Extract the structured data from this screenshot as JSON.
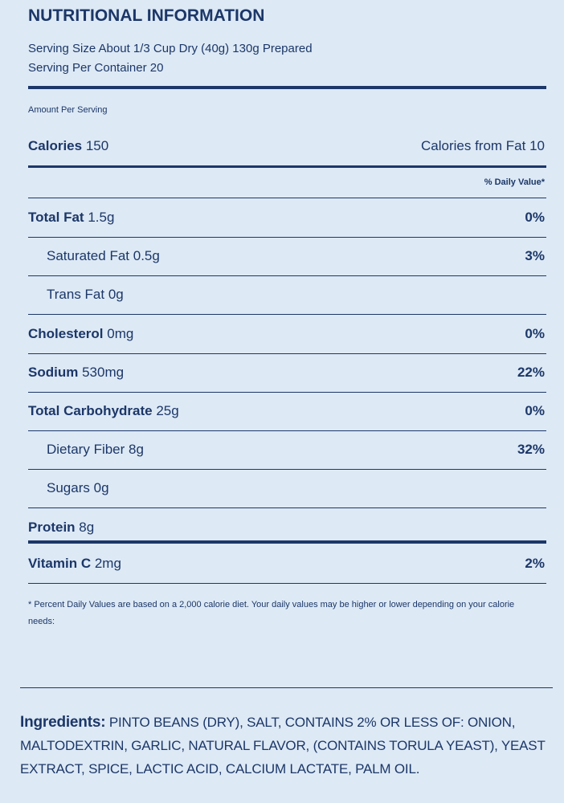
{
  "header": {
    "title": "NUTRITIONAL INFORMATION",
    "serving_size": "Serving Size About 1/3 Cup Dry (40g) 130g Prepared",
    "servings": "Serving Per Container 20"
  },
  "amount_per_serving": "Amount Per Serving",
  "calories": {
    "label": "Calories",
    "value": "150",
    "from_fat": "Calories from Fat 10"
  },
  "daily_value_header": "% Daily Value*",
  "nutrients": [
    {
      "label": "Total Fat",
      "amount": "1.5g",
      "dv": "0%"
    },
    {
      "label": "Saturated Fat",
      "amount": "0.5g",
      "dv": "3%",
      "indent": true
    },
    {
      "label": "Trans Fat",
      "amount": "0g",
      "indent": true
    },
    {
      "label": "Cholesterol",
      "amount": "0mg",
      "dv": "0%"
    },
    {
      "label": "Sodium",
      "amount": "530mg",
      "dv": "22%"
    },
    {
      "label": "Total Carbohydrate",
      "amount": "25g",
      "dv": "0%"
    },
    {
      "label": "Dietary Fiber",
      "amount": "8g",
      "dv": "32%",
      "indent": true
    },
    {
      "label": "Sugars",
      "amount": "0g",
      "indent": true
    },
    {
      "label": "Protein",
      "amount": "8g"
    }
  ],
  "vitamins": [
    {
      "label": "Vitamin C",
      "amount": "2mg",
      "dv": "2%"
    }
  ],
  "footnote": "* Percent Daily Values are based on a 2,000 calorie diet. Your daily values may be higher or lower depending on your calorie needs:",
  "ingredients": {
    "label": "Ingredients:",
    "text": "PINTO BEANS (DRY), SALT, CONTAINS 2% OR LESS OF: ONION, MALTODEXTRIN, GARLIC, NATURAL FLAVOR, (CONTAINS TORULA YEAST), YEAST EXTRACT, SPICE, LACTIC ACID, CALCIUM LACTATE, PALM OIL."
  }
}
